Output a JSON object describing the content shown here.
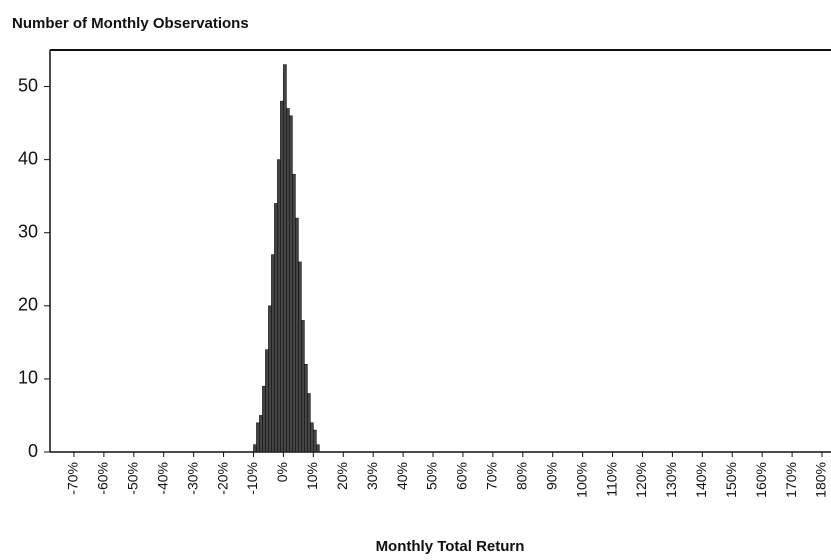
{
  "chart_data": {
    "type": "histogram",
    "title": "Number of Monthly Observations",
    "x_label": "Monthly Total Return",
    "bins": [
      -10,
      -9,
      -8,
      -7,
      -6,
      -5,
      -4,
      -3,
      -2,
      -1,
      0,
      1,
      2,
      3,
      4,
      5,
      6,
      7,
      8,
      9,
      10,
      11,
      12
    ],
    "values": [
      1,
      4,
      5,
      9,
      14,
      20,
      27,
      34,
      40,
      48,
      53,
      47,
      46,
      38,
      32,
      26,
      18,
      12,
      8,
      4,
      3,
      1
    ],
    "color": "#444444",
    "xlim": [
      -78,
      183
    ],
    "ylim": [
      0,
      55
    ],
    "yticks": [
      0,
      10,
      20,
      30,
      40,
      50
    ],
    "xticks": [
      {
        "value": -70,
        "label": "-70%"
      },
      {
        "value": -60,
        "label": "-60%"
      },
      {
        "value": -50,
        "label": "-50%"
      },
      {
        "value": -40,
        "label": "-40%"
      },
      {
        "value": -30,
        "label": "-30%"
      },
      {
        "value": -20,
        "label": "-20%"
      },
      {
        "value": -10,
        "label": "-10%"
      },
      {
        "value": 0,
        "label": "0%"
      },
      {
        "value": 10,
        "label": "10%"
      },
      {
        "value": 20,
        "label": "20%"
      },
      {
        "value": 30,
        "label": "30%"
      },
      {
        "value": 40,
        "label": "40%"
      },
      {
        "value": 50,
        "label": "50%"
      },
      {
        "value": 60,
        "label": "60%"
      },
      {
        "value": 70,
        "label": "70%"
      },
      {
        "value": 80,
        "label": "80%"
      },
      {
        "value": 90,
        "label": "90%"
      },
      {
        "value": 100,
        "label": "100%"
      },
      {
        "value": 110,
        "label": "110%"
      },
      {
        "value": 120,
        "label": "120%"
      },
      {
        "value": 130,
        "label": "130%"
      },
      {
        "value": 140,
        "label": "140%"
      },
      {
        "value": 150,
        "label": "150%"
      },
      {
        "value": 160,
        "label": "160%"
      },
      {
        "value": 170,
        "label": "170%"
      },
      {
        "value": 180,
        "label": "180%"
      }
    ]
  }
}
